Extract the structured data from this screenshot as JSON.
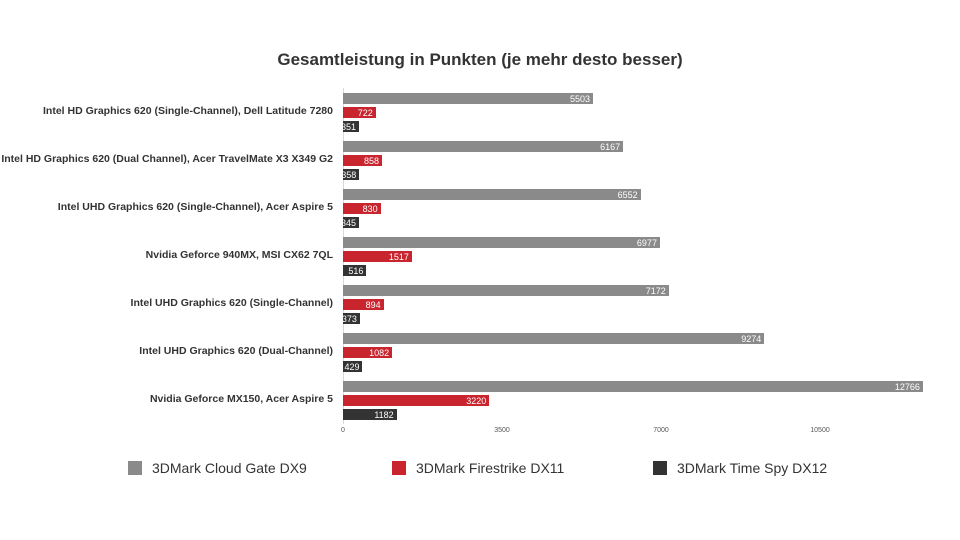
{
  "chart_data": {
    "type": "bar",
    "orientation": "horizontal",
    "title": "Gesamtleistung in Punkten (je mehr desto besser)",
    "xlabel": "",
    "ylabel": "",
    "xlim": [
      0,
      13000
    ],
    "xticks": [
      "0",
      "3500",
      "7000",
      "10500"
    ],
    "grid": false,
    "legend_position": "bottom",
    "categories": [
      "Intel HD Graphics 620 (Single-Channel), Dell Latitude 7280",
      "Intel HD Graphics 620 (Dual Channel), Acer TravelMate X3 X349 G2",
      "Intel UHD Graphics 620 (Single-Channel), Acer Aspire 5",
      "Nvidia Geforce 940MX, MSI CX62 7QL",
      "Intel UHD Graphics 620 (Single-Channel)",
      "Intel UHD Graphics 620 (Dual-Channel)",
      "Nvidia Geforce MX150, Acer Aspire 5"
    ],
    "series": [
      {
        "name": "3DMark Cloud Gate DX9",
        "color": "#8a8a8a",
        "values": [
          5503,
          6167,
          6552,
          6977,
          7172,
          9274,
          12766
        ]
      },
      {
        "name": "3DMark Firestrike DX11",
        "color": "#c8252f",
        "values": [
          722,
          858,
          830,
          1517,
          894,
          1082,
          3220
        ]
      },
      {
        "name": "3DMark Time Spy DX12",
        "color": "#333333",
        "values": [
          351,
          358,
          345,
          516,
          373,
          429,
          1182
        ]
      }
    ]
  }
}
